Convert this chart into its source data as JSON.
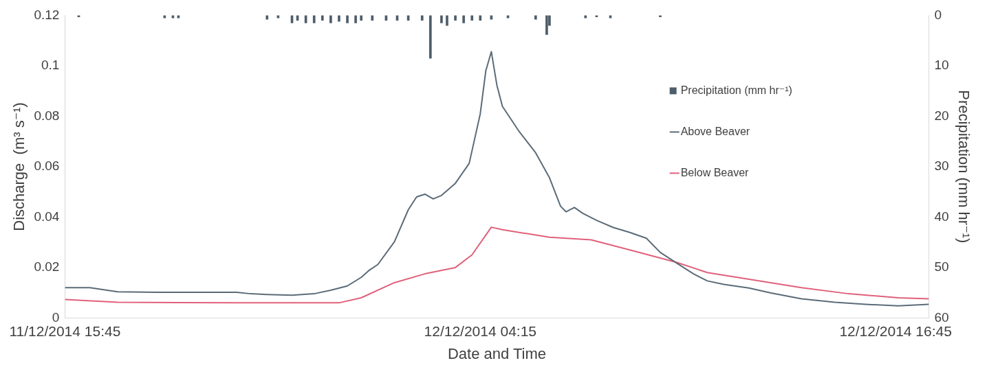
{
  "chart_data": {
    "type": "line",
    "xlabel": "Date and Time",
    "ylabel": "Discharge  (m³ s⁻¹)",
    "y2label": "Precipitation (mm hr⁻¹)",
    "xlim": [
      "2014-12-11T15:45",
      "2014-12-12T17:45"
    ],
    "xticks": [
      {
        "value": "2014-12-11T15:45",
        "label": "11/12/2014 15:45"
      },
      {
        "value": "2014-12-12T04:15",
        "label": "12/12/2014 04:15"
      },
      {
        "value": "2014-12-12T16:45",
        "label": "12/12/2014 16:45"
      }
    ],
    "ylim": [
      0,
      0.12
    ],
    "yticks": [
      0,
      0.02,
      0.04,
      0.06,
      0.08,
      0.1,
      0.12
    ],
    "y2lim": [
      60,
      0
    ],
    "y2ticks": [
      0,
      10,
      20,
      30,
      40,
      50,
      60
    ],
    "grid": false,
    "legend": "top right",
    "series": [
      {
        "name": "Precipitation (mm hr⁻¹)",
        "type": "bar",
        "axis": "y2",
        "color": "#4d5d6b",
        "x": [
          "2014-12-11T16:10",
          "2014-12-11T18:45",
          "2014-12-11T19:00",
          "2014-12-11T19:10",
          "2014-12-11T21:50",
          "2014-12-11T22:10",
          "2014-12-11T22:35",
          "2014-12-11T22:45",
          "2014-12-11T23:00",
          "2014-12-11T23:15",
          "2014-12-11T23:30",
          "2014-12-11T23:45",
          "2014-12-12T00:00",
          "2014-12-12T00:15",
          "2014-12-12T00:30",
          "2014-12-12T00:40",
          "2014-12-12T01:00",
          "2014-12-12T01:25",
          "2014-12-12T01:45",
          "2014-12-12T02:05",
          "2014-12-12T02:30",
          "2014-12-12T02:45",
          "2014-12-12T03:05",
          "2014-12-12T03:15",
          "2014-12-12T03:30",
          "2014-12-12T03:45",
          "2014-12-12T04:00",
          "2014-12-12T04:15",
          "2014-12-12T04:35",
          "2014-12-12T05:05",
          "2014-12-12T05:55",
          "2014-12-12T06:15",
          "2014-12-12T06:20",
          "2014-12-12T07:25",
          "2014-12-12T07:45",
          "2014-12-12T08:10",
          "2014-12-12T09:40"
        ],
        "values": [
          0.3,
          0.5,
          0.5,
          0.5,
          0.8,
          0.5,
          1.5,
          1.0,
          1.5,
          1.5,
          1.0,
          1.5,
          1.2,
          1.5,
          1.5,
          1.0,
          1.0,
          1.0,
          1.0,
          1.0,
          1.0,
          8.5,
          1.5,
          2.0,
          1.0,
          1.5,
          1.0,
          1.0,
          0.8,
          0.5,
          0.8,
          3.8,
          2.0,
          0.5,
          0.3,
          0.5,
          0.3
        ]
      },
      {
        "name": "Above Beaver",
        "color": "#5a6b78",
        "x": [
          "2014-12-11T15:45",
          "2014-12-11T16:30",
          "2014-12-11T17:20",
          "2014-12-11T18:30",
          "2014-12-11T20:55",
          "2014-12-11T21:20",
          "2014-12-11T21:50",
          "2014-12-11T22:35",
          "2014-12-11T23:15",
          "2014-12-11T23:45",
          "2014-12-12T00:15",
          "2014-12-12T00:40",
          "2014-12-12T00:55",
          "2014-12-12T01:10",
          "2014-12-12T01:40",
          "2014-12-12T02:05",
          "2014-12-12T02:20",
          "2014-12-12T02:35",
          "2014-12-12T02:50",
          "2014-12-12T03:05",
          "2014-12-12T03:30",
          "2014-12-12T03:55",
          "2014-12-12T04:15",
          "2014-12-12T04:25",
          "2014-12-12T04:35",
          "2014-12-12T04:45",
          "2014-12-12T04:55",
          "2014-12-12T05:25",
          "2014-12-12T05:55",
          "2014-12-12T06:20",
          "2014-12-12T06:40",
          "2014-12-12T06:50",
          "2014-12-12T07:05",
          "2014-12-12T07:20",
          "2014-12-12T07:45",
          "2014-12-12T08:15",
          "2014-12-12T08:45",
          "2014-12-12T09:15",
          "2014-12-12T09:40",
          "2014-12-12T10:10",
          "2014-12-12T10:40",
          "2014-12-12T11:05",
          "2014-12-12T11:35",
          "2014-12-12T12:20",
          "2014-12-12T13:00",
          "2014-12-12T13:55",
          "2014-12-12T14:55",
          "2014-12-12T15:50",
          "2014-12-12T16:50",
          "2014-12-12T17:45"
        ],
        "values": [
          0.012,
          0.012,
          0.0104,
          0.0102,
          0.0102,
          0.0096,
          0.0093,
          0.009,
          0.0096,
          0.011,
          0.0127,
          0.0161,
          0.019,
          0.0212,
          0.0302,
          0.0429,
          0.048,
          0.0491,
          0.0472,
          0.0486,
          0.0534,
          0.0613,
          0.081,
          0.098,
          0.1056,
          0.0923,
          0.0839,
          0.074,
          0.0655,
          0.0556,
          0.0443,
          0.0421,
          0.0438,
          0.0415,
          0.0387,
          0.0359,
          0.0339,
          0.0316,
          0.026,
          0.0217,
          0.0175,
          0.0147,
          0.0133,
          0.0119,
          0.0099,
          0.0076,
          0.0062,
          0.0054,
          0.0048,
          0.0054
        ]
      },
      {
        "name": "Below Beaver",
        "color": "#e0607a",
        "x": [
          "2014-12-11T15:45",
          "2014-12-11T17:20",
          "2014-12-11T20:55",
          "2014-12-12T00:00",
          "2014-12-12T00:40",
          "2014-12-12T01:40",
          "2014-12-12T02:35",
          "2014-12-12T03:30",
          "2014-12-12T04:00",
          "2014-12-12T04:35",
          "2014-12-12T04:55",
          "2014-12-12T06:20",
          "2014-12-12T07:35",
          "2014-12-12T08:45",
          "2014-12-12T10:10",
          "2014-12-12T11:05",
          "2014-12-12T12:30",
          "2014-12-12T13:55",
          "2014-12-12T15:20",
          "2014-12-12T16:50",
          "2014-12-12T17:45"
        ],
        "values": [
          0.0073,
          0.0062,
          0.006,
          0.006,
          0.008,
          0.014,
          0.0175,
          0.02,
          0.025,
          0.036,
          0.035,
          0.032,
          0.031,
          0.027,
          0.022,
          0.018,
          0.015,
          0.012,
          0.0096,
          0.008,
          0.0076
        ]
      }
    ]
  }
}
